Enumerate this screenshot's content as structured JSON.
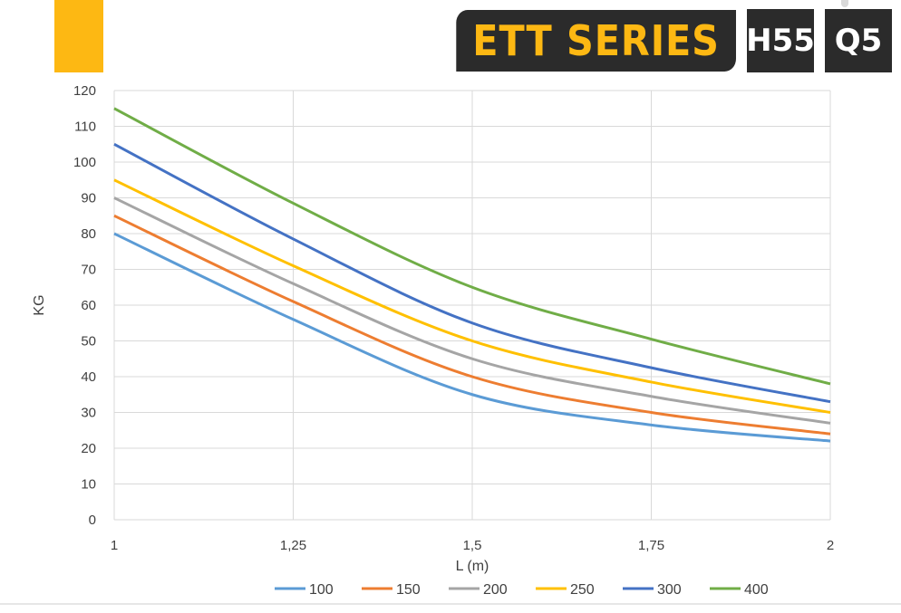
{
  "header": {
    "series_label": "ETT SERIES",
    "badge_1": "H55",
    "badge_2": "Q5",
    "accent_color": "#FDB813"
  },
  "chart_data": {
    "type": "line",
    "xlabel": "L (m)",
    "ylabel": "KG",
    "x": [
      1,
      1.25,
      1.5,
      1.75,
      2
    ],
    "x_tick_labels": [
      "1",
      "1,25",
      "1,5",
      "1,75",
      "2"
    ],
    "xlim": [
      1,
      2
    ],
    "ylim": [
      0,
      120
    ],
    "y_ticks": [
      0,
      10,
      20,
      30,
      40,
      50,
      60,
      70,
      80,
      90,
      100,
      110,
      120
    ],
    "grid": true,
    "legend_position": "bottom",
    "series": [
      {
        "name": "100",
        "color": "#5B9BD5",
        "values": [
          80,
          56,
          35,
          26.5,
          22
        ]
      },
      {
        "name": "150",
        "color": "#ED7D31",
        "values": [
          85,
          61,
          40,
          30,
          24
        ]
      },
      {
        "name": "200",
        "color": "#A5A5A5",
        "values": [
          90,
          66,
          45,
          34.5,
          27
        ]
      },
      {
        "name": "250",
        "color": "#FFC000",
        "values": [
          95,
          71,
          50,
          38.5,
          30
        ]
      },
      {
        "name": "300",
        "color": "#4472C4",
        "values": [
          105,
          78.5,
          55,
          42.5,
          33
        ]
      },
      {
        "name": "400",
        "color": "#70AD47",
        "values": [
          115,
          88.5,
          65,
          50.5,
          38
        ]
      }
    ]
  }
}
